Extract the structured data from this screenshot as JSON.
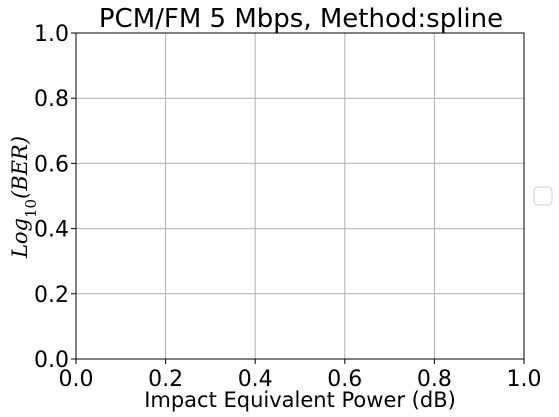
{
  "chart_data": {
    "type": "line",
    "title": "PCM/FM 5 Mbps, Method:spline",
    "xlabel": "Impact Equivalent Power (dB)",
    "ylabel": {
      "base": "Log",
      "subscript": "10",
      "argument": "(BER)"
    },
    "xlim": [
      0.0,
      1.0
    ],
    "ylim": [
      0.0,
      1.0
    ],
    "xticks": [
      "0.0",
      "0.2",
      "0.4",
      "0.6",
      "0.8",
      "1.0"
    ],
    "yticks": [
      "0.0",
      "0.2",
      "0.4",
      "0.6",
      "0.8",
      "1.0"
    ],
    "xtick_values": [
      0.0,
      0.2,
      0.4,
      0.6,
      0.8,
      1.0
    ],
    "ytick_values": [
      0.0,
      0.2,
      0.4,
      0.6,
      0.8,
      1.0
    ],
    "grid": true,
    "legend_placement": "center-right",
    "legend_entries": [],
    "series": []
  },
  "colors": {
    "grid": "#b0b0b0",
    "axes": "#000000",
    "background": "#ffffff",
    "legend_border": "#cccccc"
  }
}
